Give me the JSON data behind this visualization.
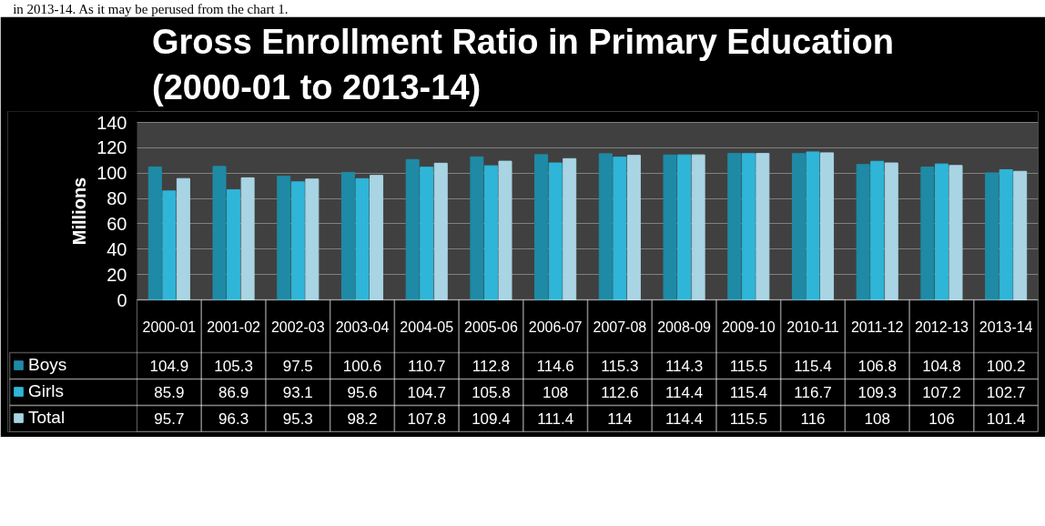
{
  "chart_data": {
    "type": "bar",
    "title": "Gross Enrollment Ratio in Primary Education\n(2000-01 to 2013-14)",
    "ylabel": "Millions",
    "annotations": [
      "in 2013-14. As it may be perused from the chart 1."
    ],
    "categories": [
      "2000-01",
      "2001-02",
      "2002-03",
      "2003-04",
      "2004-05",
      "2005-06",
      "2006-07",
      "2007-08",
      "2008-09",
      "2009-10",
      "2010-11",
      "2011-12",
      "2012-13",
      "2013-14"
    ],
    "series": [
      {
        "name": "Boys",
        "color": "#1f8aa5",
        "values": [
          104.9,
          105.3,
          97.5,
          100.6,
          110.7,
          112.8,
          114.6,
          115.3,
          114.3,
          115.5,
          115.4,
          106.8,
          104.8,
          100.2
        ]
      },
      {
        "name": "Girls",
        "color": "#2fb5d8",
        "values": [
          85.9,
          86.9,
          93.1,
          95.6,
          104.7,
          105.8,
          108,
          112.6,
          114.4,
          115.4,
          116.7,
          109.3,
          107.2,
          102.7
        ]
      },
      {
        "name": "Total",
        "color": "#a8d4e3",
        "values": [
          95.7,
          96.3,
          95.3,
          98.2,
          107.8,
          109.4,
          111.4,
          114,
          114.4,
          115.5,
          116,
          108,
          106,
          101.4
        ]
      }
    ],
    "ylim": [
      0,
      140
    ],
    "yticks": [
      0,
      20,
      40,
      60,
      80,
      100,
      120,
      140
    ],
    "grid": "y",
    "legend": "bottom left",
    "data_labels": true
  }
}
